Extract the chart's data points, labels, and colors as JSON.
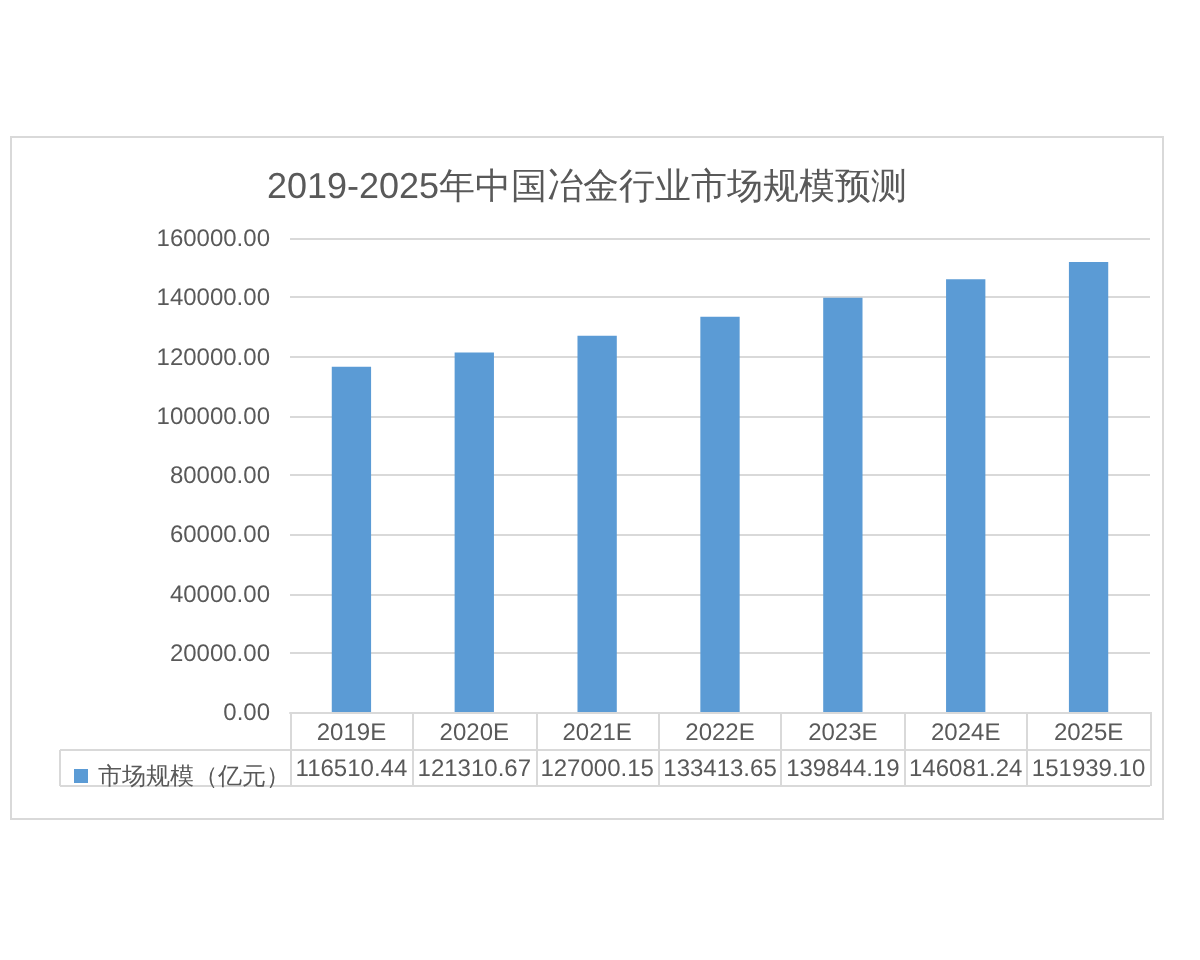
{
  "chart_data": {
    "type": "bar",
    "title": "2019-2025年中国冶金行业市场规模预测",
    "categories": [
      "2019E",
      "2020E",
      "2021E",
      "2022E",
      "2023E",
      "2024E",
      "2025E"
    ],
    "series": [
      {
        "name": "市场规模（亿元）",
        "color": "#5b9bd5",
        "values": [
          116510.44,
          121310.67,
          127000.15,
          133413.65,
          139844.19,
          146081.24,
          151939.1
        ],
        "value_labels": [
          "116510.44",
          "121310.67",
          "127000.15",
          "133413.65",
          "139844.19",
          "146081.24",
          "151939.10"
        ]
      }
    ],
    "ylim": [
      0,
      160000
    ],
    "yticks": [
      {
        "value": 0,
        "label": "0.00"
      },
      {
        "value": 20000,
        "label": "20000.00"
      },
      {
        "value": 40000,
        "label": "40000.00"
      },
      {
        "value": 60000,
        "label": "60000.00"
      },
      {
        "value": 80000,
        "label": "80000.00"
      },
      {
        "value": 100000,
        "label": "100000.00"
      },
      {
        "value": 120000,
        "label": "120000.00"
      },
      {
        "value": 140000,
        "label": "140000.00"
      },
      {
        "value": 160000,
        "label": "160000.00"
      }
    ],
    "grid": "y",
    "legend": "bottom left"
  }
}
